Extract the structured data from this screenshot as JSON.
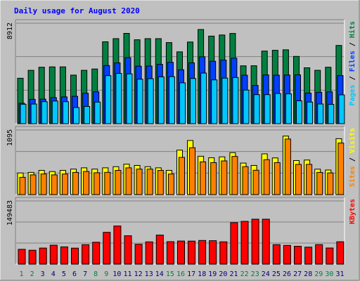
{
  "title": "Daily usage for August 2020",
  "colors": {
    "background": "#c0c0c0",
    "title": "#0000ff",
    "pages": "#00c8ff",
    "files": "#0040ff",
    "hits": "#008040",
    "sites": "#ff8000",
    "visits": "#ffff00",
    "kbytes": "#ff0000",
    "weekday_label": "#000080",
    "weekend_label": "#008040"
  },
  "chart_data": [
    {
      "type": "bar",
      "name": "pages-files-hits",
      "ymax_label": "8912",
      "ymax": 8912,
      "legend": [
        "Pages",
        "Files",
        "Hits"
      ],
      "series": [
        {
          "name": "Hits",
          "values": [
            4025,
            4731,
            5003,
            5037,
            5037,
            4308,
            4731,
            4850,
            7259,
            7544,
            8007,
            7443,
            7542,
            7542,
            7192,
            6371,
            7242,
            8352,
            7765,
            7862,
            8001,
            5132,
            5138,
            6436,
            6506,
            6549,
            5966,
            4957,
            4730,
            5002,
            6938
          ]
        },
        {
          "name": "Files",
          "values": [
            1808,
            2159,
            2174,
            2306,
            2376,
            2425,
            2694,
            2821,
            5151,
            5391,
            5851,
            5097,
            5112,
            5263,
            5441,
            4780,
            5395,
            5931,
            5535,
            5640,
            5810,
            4295,
            3390,
            4325,
            4300,
            4313,
            4330,
            2712,
            2779,
            2819,
            4260
          ]
        },
        {
          "name": "Pages",
          "values": [
            1719,
            1738,
            1953,
            2006,
            1951,
            1431,
            1524,
            1913,
            4259,
            4455,
            4412,
            3945,
            3986,
            4149,
            4169,
            3621,
            4008,
            4489,
            3880,
            4039,
            4090,
            2980,
            2572,
            2575,
            2672,
            2641,
            2027,
            1914,
            1744,
            1709,
            2557
          ]
        }
      ]
    },
    {
      "type": "bar",
      "name": "sites-visits",
      "ymax_label": "1095",
      "ymax": 1095,
      "legend": [
        "Sites",
        "Visits"
      ],
      "series": [
        {
          "name": "Visits",
          "values": [
            366,
            376,
            411,
            390,
            411,
            432,
            453,
            432,
            453,
            473,
            515,
            494,
            473,
            453,
            411,
            753,
            916,
            650,
            624,
            639,
            710,
            535,
            494,
            690,
            621,
            992,
            577,
            585,
            431,
            416,
            948
          ]
        },
        {
          "name": "Sites",
          "values": [
            293,
            335,
            350,
            335,
            349,
            376,
            391,
            370,
            377,
            411,
            453,
            432,
            432,
            411,
            349,
            631,
            794,
            555,
            541,
            571,
            646,
            474,
            413,
            591,
            541,
            942,
            512,
            512,
            376,
            368,
            874
          ]
        }
      ]
    },
    {
      "type": "bar",
      "name": "kbytes",
      "ymax_label": "149483",
      "ymax": 149483,
      "legend": [
        "KBytes"
      ],
      "series": [
        {
          "name": "KBytes",
          "values": [
            35004,
            32900,
            38112,
            44912,
            40921,
            37844,
            46031,
            51800,
            75221,
            90120,
            67020,
            47012,
            52611,
            68720,
            53120,
            54612,
            54412,
            55931,
            55410,
            52812,
            98112,
            101223,
            106241,
            106340,
            46212,
            44410,
            42314,
            40123,
            46241,
            38212,
            53020
          ]
        }
      ]
    }
  ],
  "days": [
    "1",
    "2",
    "3",
    "4",
    "5",
    "6",
    "7",
    "8",
    "9",
    "10",
    "11",
    "12",
    "13",
    "14",
    "15",
    "16",
    "17",
    "18",
    "19",
    "20",
    "21",
    "22",
    "23",
    "24",
    "25",
    "26",
    "27",
    "28",
    "29",
    "30",
    "31"
  ],
  "weekend_days": [
    1,
    2,
    8,
    9,
    15,
    16,
    22,
    23,
    29,
    30
  ]
}
